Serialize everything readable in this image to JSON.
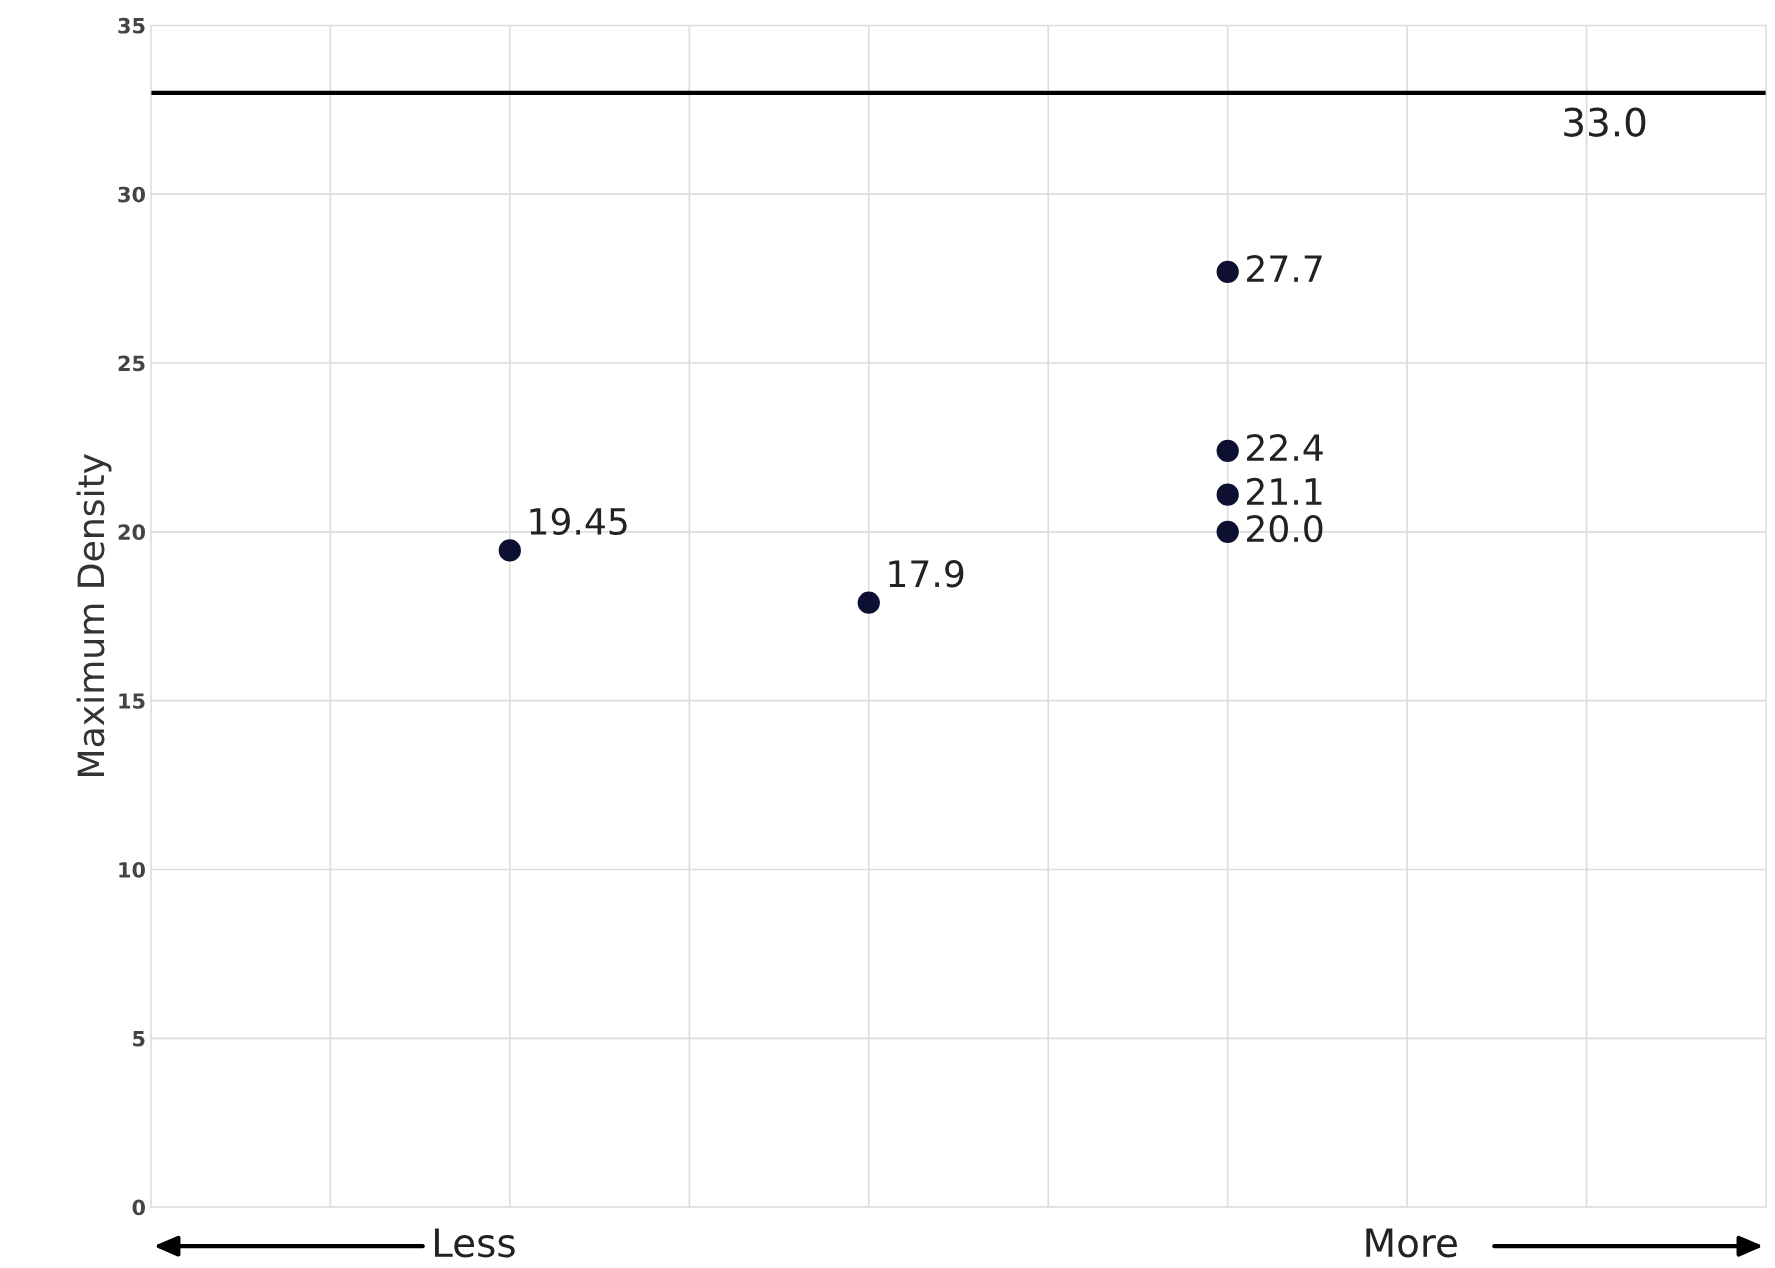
{
  "chart_data": {
    "type": "scatter",
    "ylabel": "Maximum Density",
    "categories": [
      null,
      null,
      null,
      null,
      null,
      null,
      null,
      null,
      null,
      null
    ],
    "series": [
      {
        "color": "#0d1030",
        "values": [
          null,
          null,
          19.45,
          null,
          17.9,
          null,
          20.0,
          null,
          null,
          null
        ],
        "value_labels": [
          null,
          null,
          "19.45",
          null,
          "17.9",
          null,
          "20.0",
          null,
          null,
          null
        ]
      },
      {
        "color": "#0d1030",
        "values": [
          null,
          null,
          null,
          null,
          null,
          null,
          21.1,
          null,
          null,
          null
        ],
        "value_labels": [
          null,
          null,
          null,
          null,
          null,
          null,
          "21.1",
          null,
          null,
          null
        ]
      },
      {
        "color": "#0d1030",
        "values": [
          null,
          null,
          null,
          null,
          null,
          null,
          22.4,
          null,
          null,
          null
        ],
        "value_labels": [
          null,
          null,
          null,
          null,
          null,
          null,
          "22.4",
          null,
          null,
          null
        ]
      },
      {
        "color": "#0d1030",
        "values": [
          null,
          null,
          null,
          null,
          null,
          null,
          27.7,
          null,
          null,
          null
        ],
        "value_labels": [
          null,
          null,
          null,
          null,
          null,
          null,
          "27.7",
          null,
          null,
          null
        ]
      }
    ],
    "marker": "circle",
    "ylim": [
      0,
      35
    ],
    "yticks": [
      0,
      5,
      10,
      15,
      20,
      25,
      30,
      35
    ],
    "grid": true,
    "tick_labels": "y",
    "ref_lines": [
      {
        "axis": "y",
        "value": 33.0,
        "label": "33.0",
        "color": "#000000"
      }
    ],
    "annotations": [
      "Less",
      "More"
    ]
  }
}
